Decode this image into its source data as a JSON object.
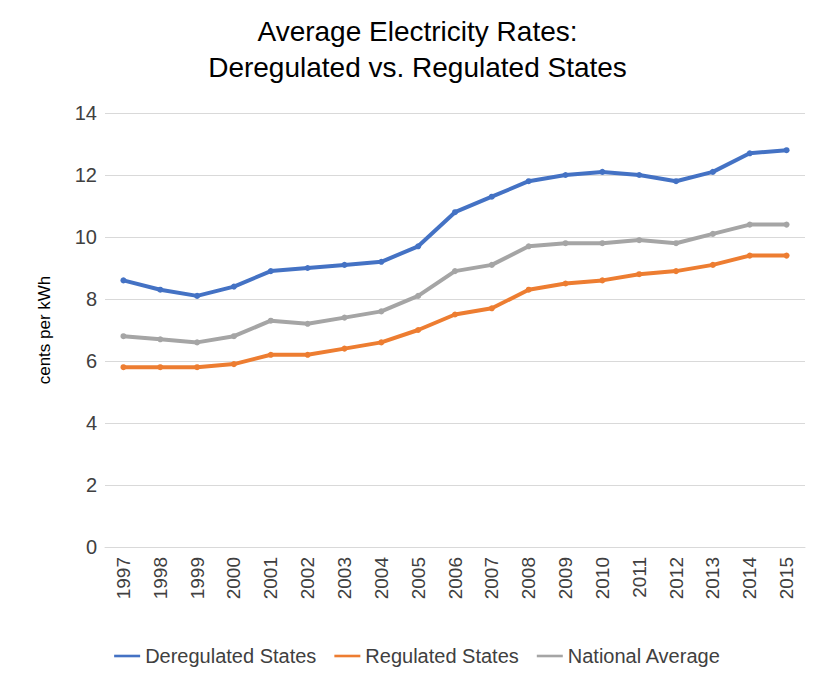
{
  "chart_data": {
    "type": "line",
    "title": "Average Electricity Rates:\nDeregulated vs. Regulated States",
    "y_label": "cents per kWh",
    "categories": [
      "1997",
      "1998",
      "1999",
      "2000",
      "2001",
      "2002",
      "2003",
      "2004",
      "2005",
      "2006",
      "2007",
      "2008",
      "2009",
      "2010",
      "2011",
      "2012",
      "2013",
      "2014",
      "2015"
    ],
    "series": [
      {
        "name": "Deregulated States",
        "color": "#4472c4",
        "marker": "circle",
        "values": [
          8.6,
          8.3,
          8.1,
          8.4,
          8.9,
          9.0,
          9.1,
          9.2,
          9.7,
          10.8,
          11.3,
          11.8,
          12.0,
          12.1,
          12.0,
          11.8,
          12.1,
          12.7,
          12.8
        ]
      },
      {
        "name": "Regulated States",
        "color": "#ed7d31",
        "marker": "circle",
        "values": [
          5.8,
          5.8,
          5.8,
          5.9,
          6.2,
          6.2,
          6.4,
          6.6,
          7.0,
          7.5,
          7.7,
          8.3,
          8.5,
          8.6,
          8.8,
          8.9,
          9.1,
          9.4,
          9.4
        ]
      },
      {
        "name": "National Average",
        "color": "#a5a5a5",
        "marker": "circle",
        "values": [
          6.8,
          6.7,
          6.6,
          6.8,
          7.3,
          7.2,
          7.4,
          7.6,
          8.1,
          8.9,
          9.1,
          9.7,
          9.8,
          9.8,
          9.9,
          9.8,
          10.1,
          10.4,
          10.4
        ]
      }
    ],
    "ylim": [
      0,
      14
    ],
    "yticks": [
      0,
      2,
      4,
      6,
      8,
      10,
      12,
      14
    ],
    "grid": true,
    "legend": "bottom"
  }
}
